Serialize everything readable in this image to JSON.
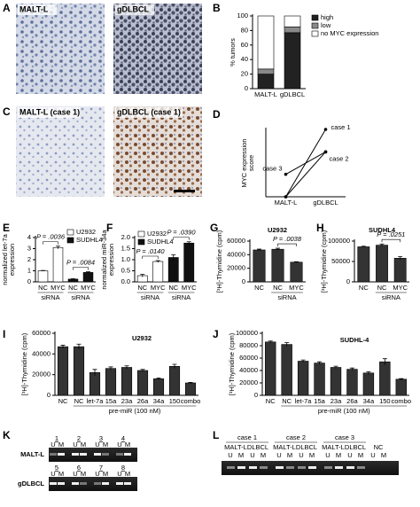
{
  "images": {
    "A": {
      "panel": "A",
      "labels": [
        "MALT-L",
        "gDLBCL"
      ]
    },
    "C": {
      "panel": "C",
      "labels": [
        "MALT-L (case 1)",
        "gDLBCL (case 1)"
      ]
    }
  },
  "gels": {
    "K": {
      "panel": "K",
      "rows": [
        "MALT-L",
        "gDLBCL"
      ],
      "lanes": [
        "1",
        "2",
        "3",
        "4",
        "5",
        "6",
        "7",
        "8"
      ],
      "lane_marks": [
        "U",
        "M"
      ]
    },
    "L": {
      "panel": "L",
      "cases": [
        "case 1",
        "case 2",
        "case 3"
      ],
      "samples": [
        "MALT-L",
        "DLBCL"
      ],
      "control": "NC",
      "lane_marks": [
        "U",
        "M"
      ]
    }
  },
  "chart_data": [
    {
      "type": "stacked_bar",
      "panel": "B",
      "ylabel": "% tumors",
      "categories": [
        "MALT-L",
        "gDLBCL"
      ],
      "series": [
        {
          "name": "high",
          "color": "#222222",
          "values": [
            20,
            77
          ]
        },
        {
          "name": "low",
          "color": "#8a8a8a",
          "values": [
            7,
            8
          ]
        },
        {
          "name": "no MYC expression",
          "color": "#ffffff",
          "values": [
            73,
            15
          ]
        }
      ],
      "ylim": [
        0,
        100
      ],
      "yticks": [
        0,
        20,
        40,
        60,
        80,
        100
      ]
    },
    {
      "type": "line",
      "panel": "D",
      "ylabel": [
        "MYC expression",
        "score"
      ],
      "categories": [
        "MALT-L",
        "gDLBCL"
      ],
      "series": [
        {
          "name": "case 1",
          "color": "#000000",
          "values": [
            0,
            3
          ]
        },
        {
          "name": "case 2",
          "color": "#000000",
          "values": [
            0,
            2
          ]
        },
        {
          "name": "case 3",
          "color": "#000000",
          "values": [
            1,
            2
          ]
        }
      ],
      "ylim": [
        0,
        3
      ]
    },
    {
      "type": "bar",
      "panel": "E",
      "ylabel": [
        "normalized let-7a",
        "expression"
      ],
      "categories": [
        "NC",
        "MYC",
        "NC",
        "MYC"
      ],
      "series": [
        {
          "name": "U2932",
          "color": "#ffffff",
          "values": [
            1.0,
            3.1,
            null,
            null
          ],
          "errors": [
            0.03,
            0.12,
            null,
            null
          ]
        },
        {
          "name": "SUDHL4",
          "color": "#111111",
          "values": [
            null,
            null,
            0.25,
            0.85
          ],
          "errors": [
            null,
            null,
            0.03,
            0.06
          ]
        }
      ],
      "group_label": "siRNA",
      "annotations": [
        "P = .0036",
        "P = .0084"
      ],
      "ylim": [
        0,
        4
      ],
      "yticks": [
        0,
        1,
        2,
        3,
        4
      ]
    },
    {
      "type": "bar",
      "panel": "F",
      "ylabel": [
        "normalized miR-34a",
        "expression"
      ],
      "categories": [
        "NC",
        "MYC",
        "NC",
        "MYC"
      ],
      "series": [
        {
          "name": "U2932",
          "color": "#ffffff",
          "values": [
            0.28,
            0.92,
            null,
            null
          ],
          "errors": [
            0.06,
            0.04,
            null,
            null
          ]
        },
        {
          "name": "SUDHL4",
          "color": "#111111",
          "values": [
            null,
            null,
            1.1,
            1.75
          ],
          "errors": [
            null,
            null,
            0.12,
            0.06
          ]
        }
      ],
      "group_label": "siRNA",
      "annotations": [
        "P = .0140",
        "P = .0390"
      ],
      "ylim": [
        0,
        2.0
      ],
      "yticks": [
        {
          "value": 0,
          "label": "0.0"
        },
        0.5,
        {
          "value": 1,
          "label": "1.0"
        },
        1.5,
        {
          "value": 2,
          "label": "2.0"
        }
      ]
    },
    {
      "type": "bar",
      "panel": "G",
      "title": "U2932",
      "ylabel": "[³H]-Thymidine (cpm)",
      "categories": [
        "NC",
        "NC",
        "MYC"
      ],
      "values": [
        47000,
        48000,
        29000
      ],
      "errors": [
        1200,
        1500,
        600
      ],
      "color": "#333333",
      "group_label": "siRNA",
      "annotations": [
        "P = .0038"
      ],
      "ylim": [
        0,
        60000
      ],
      "yticks": [
        0,
        20000,
        40000,
        60000
      ]
    },
    {
      "type": "bar",
      "panel": "H",
      "title": "SUDHL4",
      "ylabel": "[³H]-Thymidine (cpm)",
      "categories": [
        "NC",
        "NC",
        "MYC"
      ],
      "values": [
        86000,
        90000,
        58000
      ],
      "errors": [
        1500,
        3000,
        4000
      ],
      "color": "#333333",
      "group_label": "siRNA",
      "annotations": [
        "P = .0251"
      ],
      "ylim": [
        0,
        100000
      ],
      "yticks": [
        0,
        50000,
        100000
      ]
    },
    {
      "type": "bar",
      "panel": "I",
      "title": "U2932",
      "ylabel": "[³H]-Thymidine (cpm)",
      "categories": [
        "NC",
        "NC",
        "let-7a",
        "15a",
        "23a",
        "26a",
        "34a",
        "150",
        "combo"
      ],
      "values": [
        47000,
        47000,
        22000,
        26000,
        27000,
        24000,
        16000,
        28000,
        12000
      ],
      "errors": [
        1500,
        2500,
        3000,
        1500,
        1500,
        1000,
        800,
        2000,
        500
      ],
      "color": "#333333",
      "group_label": "pre-miR (100 nM)",
      "ylim": [
        0,
        60000
      ],
      "yticks": [
        0,
        20000,
        40000,
        60000
      ]
    },
    {
      "type": "bar",
      "panel": "J",
      "title": "SUDHL-4",
      "ylabel": "[³H]-Thymidine (cpm)",
      "categories": [
        "NC",
        "NC",
        "let-7a",
        "15a",
        "23a",
        "26a",
        "34a",
        "150",
        "combo"
      ],
      "values": [
        86000,
        82000,
        55000,
        52000,
        45000,
        42000,
        36000,
        54000,
        26000
      ],
      "errors": [
        1500,
        3000,
        2000,
        2000,
        2000,
        2000,
        2000,
        5000,
        1000
      ],
      "color": "#333333",
      "group_label": "pre-miR (100 nM)",
      "ylim": [
        0,
        100000
      ],
      "yticks": [
        0,
        20000,
        40000,
        60000,
        80000,
        100000
      ]
    }
  ]
}
